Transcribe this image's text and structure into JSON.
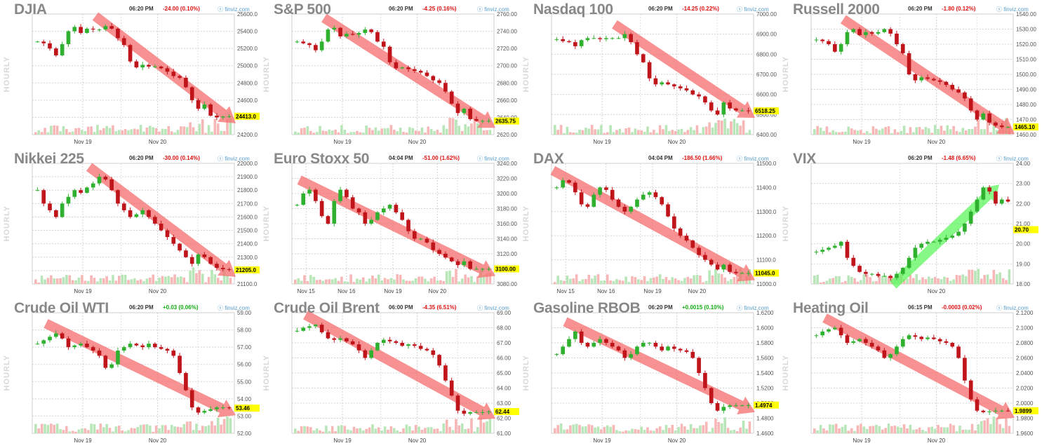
{
  "header_labels": {
    "hourly": "HOURLY",
    "brand": "finviz.com"
  },
  "colors": {
    "up": "#2fb12f",
    "down": "#c0141b",
    "vol_up": "#b8e6b8",
    "vol_down": "#f7b7b7",
    "arrow_down": "#f56d6d",
    "arrow_up": "#5cf55c",
    "last_bg": "#ffff00"
  },
  "chart_data": [
    {
      "type": "candlestick",
      "title": "DJIA",
      "time": "06:20 PM",
      "change": "-24.00 (0.10%)",
      "dir": "neg",
      "yticks": [
        "25600.0",
        "25400.0",
        "25200.0",
        "25000.0",
        "24800.0",
        "24600.0",
        "24400.0",
        "24200.0"
      ],
      "ylim": [
        24200,
        25600
      ],
      "xticks": [
        {
          "label": "Nov 19",
          "pos": 0.25
        },
        {
          "label": "Nov 20",
          "pos": 0.62
        }
      ],
      "last": "24413.0",
      "trend": "down",
      "xlabels_extra": [],
      "points": [
        25280,
        25260,
        25200,
        25120,
        25250,
        25400,
        25450,
        25380,
        25430,
        25420,
        25420,
        25460,
        25430,
        25320,
        25240,
        25050,
        24980,
        25010,
        24990,
        24990,
        24970,
        24930,
        24880,
        24860,
        24750,
        24600,
        24500,
        24550,
        24420,
        24400,
        24410,
        24413
      ]
    },
    {
      "type": "candlestick",
      "title": "S&P 500",
      "time": "06:20 PM",
      "change": "-4.25 (0.16%)",
      "dir": "neg",
      "yticks": [
        "2760.00",
        "2740.00",
        "2720.00",
        "2700.00",
        "2680.00",
        "2660.00",
        "2640.00",
        "2620.00"
      ],
      "ylim": [
        2620,
        2760
      ],
      "xticks": [
        {
          "label": "Nov 19",
          "pos": 0.25
        },
        {
          "label": "Nov 20",
          "pos": 0.62
        }
      ],
      "last": "2635.75",
      "trend": "down",
      "xlabels_extra": [],
      "points": [
        2728,
        2726,
        2724,
        2718,
        2728,
        2742,
        2744,
        2734,
        2737,
        2736,
        2738,
        2742,
        2739,
        2728,
        2722,
        2704,
        2697,
        2698,
        2696,
        2694,
        2692,
        2688,
        2683,
        2680,
        2670,
        2656,
        2645,
        2650,
        2638,
        2636,
        2636,
        2636
      ]
    },
    {
      "type": "candlestick",
      "title": "Nasdaq 100",
      "time": "06:20 PM",
      "change": "-14.25 (0.22%)",
      "dir": "neg",
      "yticks": [
        "7000.00",
        "6900.00",
        "6800.00",
        "6700.00",
        "6600.00",
        "6500.00",
        "6400.00"
      ],
      "ylim": [
        6400,
        7000
      ],
      "xticks": [
        {
          "label": "Nov 19",
          "pos": 0.25
        },
        {
          "label": "Nov 20",
          "pos": 0.62
        }
      ],
      "last": "6518.25",
      "trend": "down",
      "xlabels_extra": [],
      "points": [
        6875,
        6865,
        6860,
        6840,
        6870,
        6880,
        6880,
        6875,
        6880,
        6880,
        6880,
        6900,
        6860,
        6800,
        6760,
        6680,
        6650,
        6660,
        6650,
        6640,
        6630,
        6620,
        6600,
        6590,
        6560,
        6520,
        6500,
        6560,
        6530,
        6520,
        6520,
        6518
      ]
    },
    {
      "type": "candlestick",
      "title": "Russell 2000",
      "time": "06:20 PM",
      "change": "-1.80 (0.12%)",
      "dir": "neg",
      "yticks": [
        "1540.00",
        "1530.00",
        "1520.00",
        "1510.00",
        "1500.00",
        "1490.00",
        "1480.00",
        "1470.00",
        "1460.00"
      ],
      "ylim": [
        1460,
        1540
      ],
      "xticks": [
        {
          "label": "Nov 19",
          "pos": 0.25
        },
        {
          "label": "Nov 20",
          "pos": 0.62
        }
      ],
      "last": "1465.10",
      "trend": "down",
      "xlabels_extra": [],
      "points": [
        1523,
        1522,
        1520,
        1515,
        1520,
        1528,
        1530,
        1526,
        1528,
        1527,
        1528,
        1530,
        1527,
        1520,
        1514,
        1500,
        1496,
        1498,
        1497,
        1496,
        1495,
        1493,
        1490,
        1488,
        1484,
        1476,
        1470,
        1474,
        1468,
        1466,
        1465,
        1465
      ]
    },
    {
      "type": "candlestick",
      "title": "Nikkei 225",
      "time": "06:20 PM",
      "change": "-30.00 (0.14%)",
      "dir": "neg",
      "yticks": [
        "22000.0",
        "21900.0",
        "21800.0",
        "21700.0",
        "21600.0",
        "21500.0",
        "21400.0",
        "21300.0",
        "21200.0",
        "21100.0"
      ],
      "ylim": [
        21100,
        22000
      ],
      "xticks": [
        {
          "label": "Nov 19",
          "pos": 0.25
        },
        {
          "label": "Nov 20",
          "pos": 0.62
        }
      ],
      "last": "21205.0",
      "trend": "down",
      "xlabels_extra": [],
      "points": [
        21800,
        21700,
        21650,
        21600,
        21700,
        21750,
        21800,
        21780,
        21820,
        21850,
        21900,
        21880,
        21800,
        21700,
        21650,
        21600,
        21620,
        21650,
        21600,
        21550,
        21500,
        21450,
        21400,
        21350,
        21300,
        21250,
        21320,
        21300,
        21250,
        21220,
        21210,
        21205
      ]
    },
    {
      "type": "candlestick",
      "title": "Euro Stoxx 50",
      "time": "04:04 PM",
      "change": "-51.00 (1.62%)",
      "dir": "neg",
      "yticks": [
        "3240.00",
        "3220.00",
        "3200.00",
        "3180.00",
        "3160.00",
        "3140.00",
        "3120.00",
        "3100.00",
        "3080.00"
      ],
      "ylim": [
        3080,
        3240
      ],
      "xticks": [
        {
          "label": "Nov 15",
          "pos": 0.07
        },
        {
          "label": "Nov 16",
          "pos": 0.27
        },
        {
          "label": "Nov 19",
          "pos": 0.5
        },
        {
          "label": "Nov 20",
          "pos": 0.72
        }
      ],
      "last": "3100.00",
      "trend": "down",
      "xlabels_extra": [],
      "points": [
        3185,
        3200,
        3205,
        3190,
        3170,
        3160,
        3190,
        3205,
        3195,
        3180,
        3175,
        3160,
        3165,
        3175,
        3180,
        3185,
        3175,
        3165,
        3150,
        3140,
        3140,
        3135,
        3125,
        3120,
        3115,
        3110,
        3105,
        3110,
        3100,
        3100,
        3100,
        3100
      ]
    },
    {
      "type": "candlestick",
      "title": "DAX",
      "time": "04:04 PM",
      "change": "-186.50 (1.66%)",
      "dir": "neg",
      "yticks": [
        "11500.0",
        "11400.0",
        "11300.0",
        "11200.0",
        "11100.0",
        "11000.0"
      ],
      "ylim": [
        11000,
        11500
      ],
      "xticks": [
        {
          "label": "Nov 15",
          "pos": 0.07
        },
        {
          "label": "Nov 16",
          "pos": 0.27
        },
        {
          "label": "Nov 19",
          "pos": 0.5
        },
        {
          "label": "Nov 20",
          "pos": 0.72
        }
      ],
      "last": "11045.0",
      "trend": "down",
      "xlabels_extra": [],
      "points": [
        11400,
        11430,
        11420,
        11380,
        11330,
        11320,
        11370,
        11400,
        11390,
        11350,
        11320,
        11300,
        11320,
        11350,
        11370,
        11380,
        11360,
        11330,
        11280,
        11230,
        11200,
        11180,
        11150,
        11120,
        11100,
        11080,
        11060,
        11080,
        11050,
        11045,
        11045,
        11045
      ]
    },
    {
      "type": "candlestick",
      "title": "VIX",
      "time": "06:20 PM",
      "change": "-1.48 (6.65%)",
      "dir": "neg",
      "yticks": [
        "24.00",
        "23.00",
        "22.00",
        "21.00",
        "20.00",
        "19.00",
        "18.00"
      ],
      "ylim": [
        18,
        24
      ],
      "xticks": [
        {
          "label": "Nov 20",
          "pos": 0.62
        }
      ],
      "last": "20.70",
      "trend": "up",
      "xlabels_extra": [],
      "points": [
        19.6,
        19.7,
        19.8,
        19.9,
        20.1,
        19.3,
        18.9,
        18.6,
        18.5,
        18.5,
        18.4,
        18.4,
        18.3,
        18.5,
        18.8,
        19.3,
        19.8,
        20.0,
        20.1,
        20.1,
        20.2,
        20.3,
        20.4,
        20.6,
        21.0,
        21.6,
        22.2,
        22.8,
        22.6,
        22.0,
        22.2,
        22.1
      ]
    },
    {
      "type": "candlestick",
      "title": "Crude Oil WTI",
      "time": "06:20 PM",
      "change": "+0.03 (0.06%)",
      "dir": "pos",
      "yticks": [
        "59.00",
        "58.00",
        "57.00",
        "56.00",
        "55.00",
        "54.00",
        "53.00",
        "52.00"
      ],
      "ylim": [
        52,
        59
      ],
      "xticks": [
        {
          "label": "Nov 19",
          "pos": 0.25
        },
        {
          "label": "Nov 20",
          "pos": 0.62
        }
      ],
      "last": "53.46",
      "trend": "down",
      "xlabels_extra": [],
      "points": [
        57.2,
        57.4,
        57.6,
        57.8,
        57.5,
        57.0,
        57.1,
        57.2,
        57.0,
        56.8,
        56.5,
        55.8,
        56.0,
        56.8,
        57.0,
        57.2,
        57.1,
        57.0,
        57.2,
        57.0,
        56.9,
        56.8,
        56.5,
        55.5,
        54.5,
        53.5,
        53.2,
        53.3,
        53.4,
        53.5,
        53.5,
        53.46
      ]
    },
    {
      "type": "candlestick",
      "title": "Crude Oil Brent",
      "time": "06:00 PM",
      "change": "-4.35 (6.51%)",
      "dir": "neg",
      "yticks": [
        "69.00",
        "68.00",
        "67.00",
        "66.00",
        "65.00",
        "64.00",
        "63.00",
        "62.00",
        "61.00"
      ],
      "ylim": [
        61,
        69
      ],
      "xticks": [
        {
          "label": "Nov 19",
          "pos": 0.25
        },
        {
          "label": "Nov 20",
          "pos": 0.62
        }
      ],
      "last": "62.44",
      "trend": "down",
      "xlabels_extra": [],
      "points": [
        67.8,
        68.0,
        68.1,
        68.2,
        67.7,
        67.3,
        67.2,
        67.3,
        67.1,
        66.9,
        66.5,
        66.0,
        66.5,
        67.0,
        67.2,
        67.1,
        67.0,
        66.8,
        66.9,
        66.8,
        66.6,
        66.5,
        66.2,
        65.5,
        64.5,
        63.5,
        62.5,
        62.3,
        62.4,
        62.4,
        62.4,
        62.44
      ]
    },
    {
      "type": "candlestick",
      "title": "Gasoline RBOB",
      "time": "06:20 PM",
      "change": "+0.0015 (0.10%)",
      "dir": "pos",
      "yticks": [
        "1.6200",
        "1.6000",
        "1.5800",
        "1.5600",
        "1.5400",
        "1.5200",
        "1.5000",
        "1.4800",
        "1.4600"
      ],
      "ylim": [
        1.46,
        1.62
      ],
      "xticks": [
        {
          "label": "Nov 19",
          "pos": 0.25
        },
        {
          "label": "Nov 20",
          "pos": 0.62
        }
      ],
      "last": "1.4974",
      "trend": "down",
      "xlabels_extra": [],
      "points": [
        1.565,
        1.575,
        1.585,
        1.595,
        1.58,
        1.575,
        1.58,
        1.585,
        1.58,
        1.575,
        1.57,
        1.56,
        1.565,
        1.575,
        1.58,
        1.58,
        1.575,
        1.57,
        1.575,
        1.572,
        1.57,
        1.568,
        1.56,
        1.54,
        1.52,
        1.5,
        1.49,
        1.495,
        1.497,
        1.497,
        1.497,
        1.4974
      ]
    },
    {
      "type": "candlestick",
      "title": "Heating Oil",
      "time": "06:15 PM",
      "change": "-0.0003 (0.02%)",
      "dir": "neg",
      "yticks": [
        "2.1200",
        "2.1000",
        "2.0800",
        "2.0600",
        "2.0400",
        "2.0200",
        "2.0000",
        "1.9800",
        "1.9600"
      ],
      "ylim": [
        1.96,
        2.12
      ],
      "xticks": [
        {
          "label": "Nov 19",
          "pos": 0.25
        },
        {
          "label": "Nov 20",
          "pos": 0.62
        }
      ],
      "last": "1.9899",
      "trend": "down",
      "xlabels_extra": [],
      "points": [
        2.09,
        2.095,
        2.098,
        2.1,
        2.09,
        2.08,
        2.082,
        2.085,
        2.08,
        2.075,
        2.07,
        2.06,
        2.065,
        2.075,
        2.085,
        2.09,
        2.088,
        2.085,
        2.087,
        2.085,
        2.082,
        2.08,
        2.075,
        2.06,
        2.03,
        2.005,
        1.99,
        1.988,
        1.989,
        1.99,
        1.99,
        1.9899
      ]
    }
  ]
}
